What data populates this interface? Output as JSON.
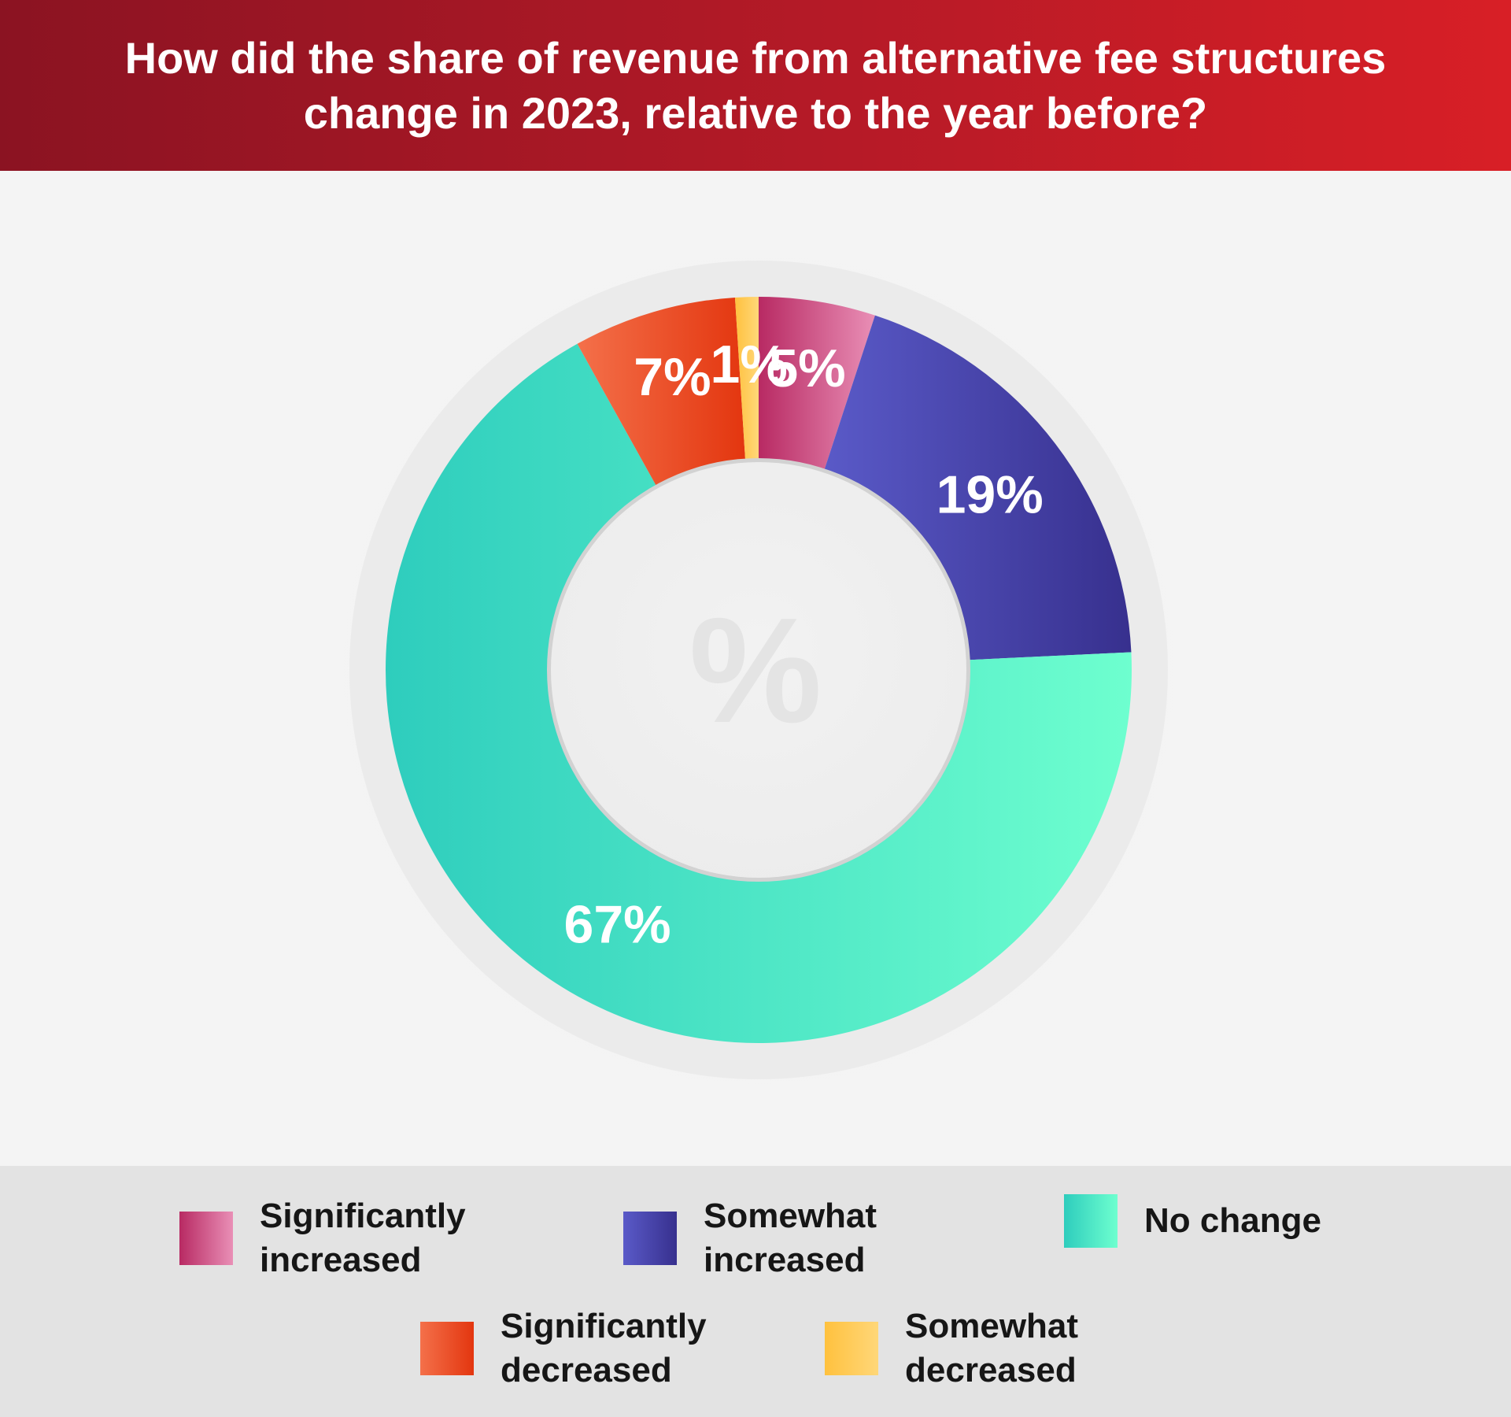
{
  "header": {
    "title": "How did the share of revenue from alternative fee structures change in 2023, relative to the year before?"
  },
  "chart_data": {
    "type": "pie",
    "style": "donut",
    "title": "How did the share of revenue from alternative fee structures change in 2023, relative to the year before?",
    "center_text": "%",
    "categories": [
      "Significantly increased",
      "Somewhat increased",
      "No change",
      "Significantly decreased",
      "Somewhat decreased"
    ],
    "values": [
      5,
      19,
      67,
      7,
      1
    ],
    "labels": [
      "5%",
      "19%",
      "67%",
      "7%",
      "1%"
    ],
    "colors": [
      "#d35a8f",
      "#4a46b2",
      "#45e8c8",
      "#ec5328",
      "#ffcb5a"
    ],
    "legend_position": "bottom"
  },
  "legend": {
    "items": [
      {
        "label": "Significantly increased"
      },
      {
        "label": "Somewhat increased"
      },
      {
        "label": "No change"
      },
      {
        "label": "Significantly decreased"
      },
      {
        "label": "Somewhat decreased"
      }
    ]
  }
}
